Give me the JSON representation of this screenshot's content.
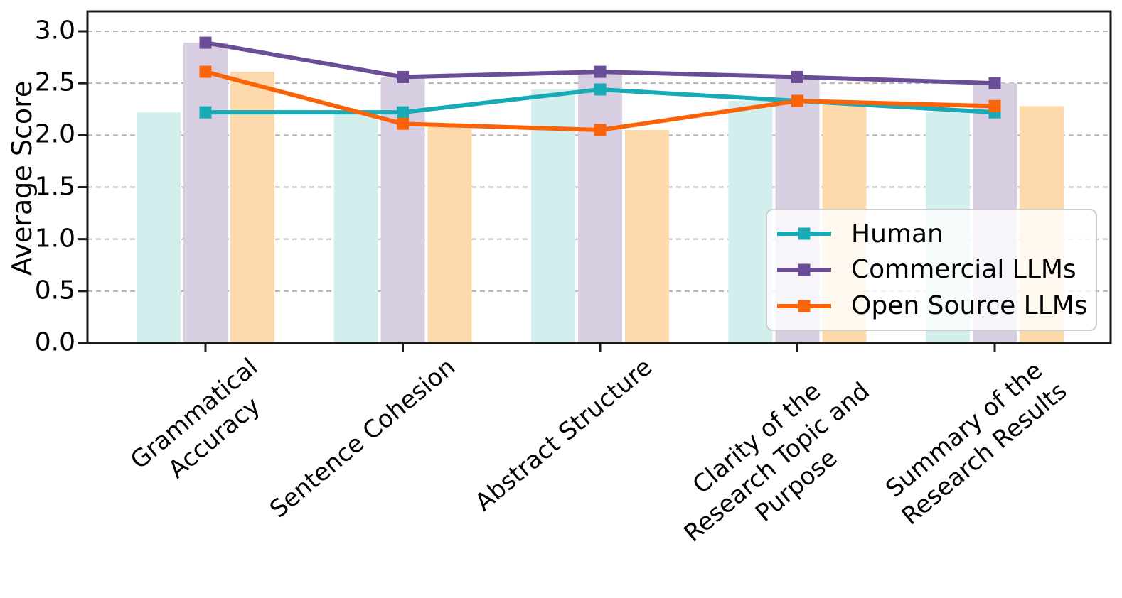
{
  "chart_data": {
    "type": "bar+line",
    "title": "",
    "ylabel": "Average Score",
    "xlabel": "",
    "categories": [
      "Grammatical\nAccuracy",
      "Sentence Cohesion",
      "Abstract Structure",
      "Clarity of the\nResearch Topic and\nPurpose",
      "Summary of the\nResearch Results"
    ],
    "series": [
      {
        "name": "Human",
        "color": "#18abb5",
        "bar_fill": "#d2eeed",
        "marker": "square",
        "values": [
          2.22,
          2.22,
          2.44,
          2.33,
          2.22
        ]
      },
      {
        "name": "Commercial LLMs",
        "color": "#6a4d96",
        "bar_fill": "#d7cee2",
        "marker": "square",
        "values": [
          2.89,
          2.56,
          2.61,
          2.56,
          2.5
        ]
      },
      {
        "name": "Open Source LLMs",
        "color": "#fb6309",
        "bar_fill": "#fdd9ab",
        "marker": "square",
        "values": [
          2.61,
          2.11,
          2.05,
          2.33,
          2.28
        ]
      }
    ],
    "yticks": [
      "0.0",
      "0.5",
      "1.0",
      "1.5",
      "2.0",
      "2.5",
      "3.0"
    ],
    "ylim": [
      0,
      3.19
    ],
    "grid": {
      "axis": "y",
      "style": "dashed",
      "color": "#b5b5b5"
    },
    "axis_color": "#1a1a1a",
    "legend": {
      "location": "lower right",
      "entries": [
        "Human",
        "Commercial LLMs",
        "Open Source LLMs"
      ]
    }
  }
}
